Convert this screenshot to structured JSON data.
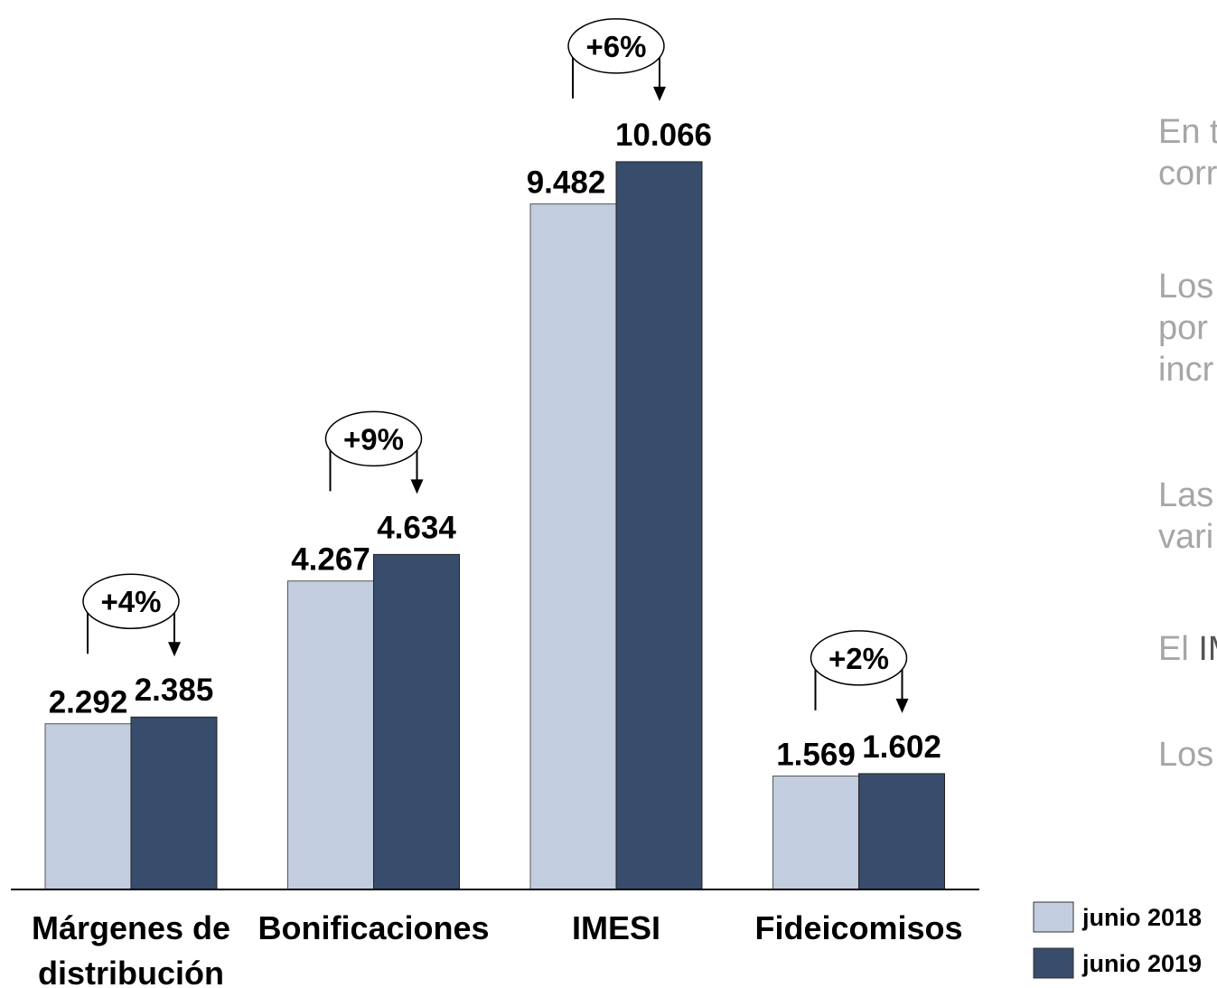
{
  "chart_data": {
    "type": "bar",
    "categories": [
      "Márgenes de distribución",
      "Bonificaciones",
      "IMESI",
      "Fideicomisos"
    ],
    "category_label_lines": [
      [
        "Márgenes de",
        "distribución"
      ],
      [
        "Bonificaciones"
      ],
      [
        "IMESI"
      ],
      [
        "Fideicomisos"
      ]
    ],
    "series": [
      {
        "name": "junio 2018",
        "values": [
          2292,
          4267,
          9482,
          1569
        ],
        "labels": [
          "2.292",
          "4.267",
          "9.482",
          "1.569"
        ],
        "color": "#c3cde0"
      },
      {
        "name": "junio 2019",
        "values": [
          2385,
          4634,
          10066,
          1602
        ],
        "labels": [
          "2.385",
          "4.634",
          "10.066",
          "1.602"
        ],
        "color": "#384c6c"
      }
    ],
    "changes": [
      "+4%",
      "+9%",
      "+6%",
      "+2%"
    ],
    "ylim": [
      0,
      10800
    ],
    "grid": false,
    "legend_position": "bottom-right",
    "title": "",
    "xlabel": "",
    "ylabel": ""
  },
  "side_text": {
    "p1_l1": "En t",
    "p1_l2": "corr",
    "p2_l1": "Los",
    "p2_l2": "por",
    "p2_l3": "incr",
    "p3_l1": "Las",
    "p3_l2": "vari",
    "p4_a": "El ",
    "p4_b": "IM",
    "p5_l1": "Los"
  }
}
